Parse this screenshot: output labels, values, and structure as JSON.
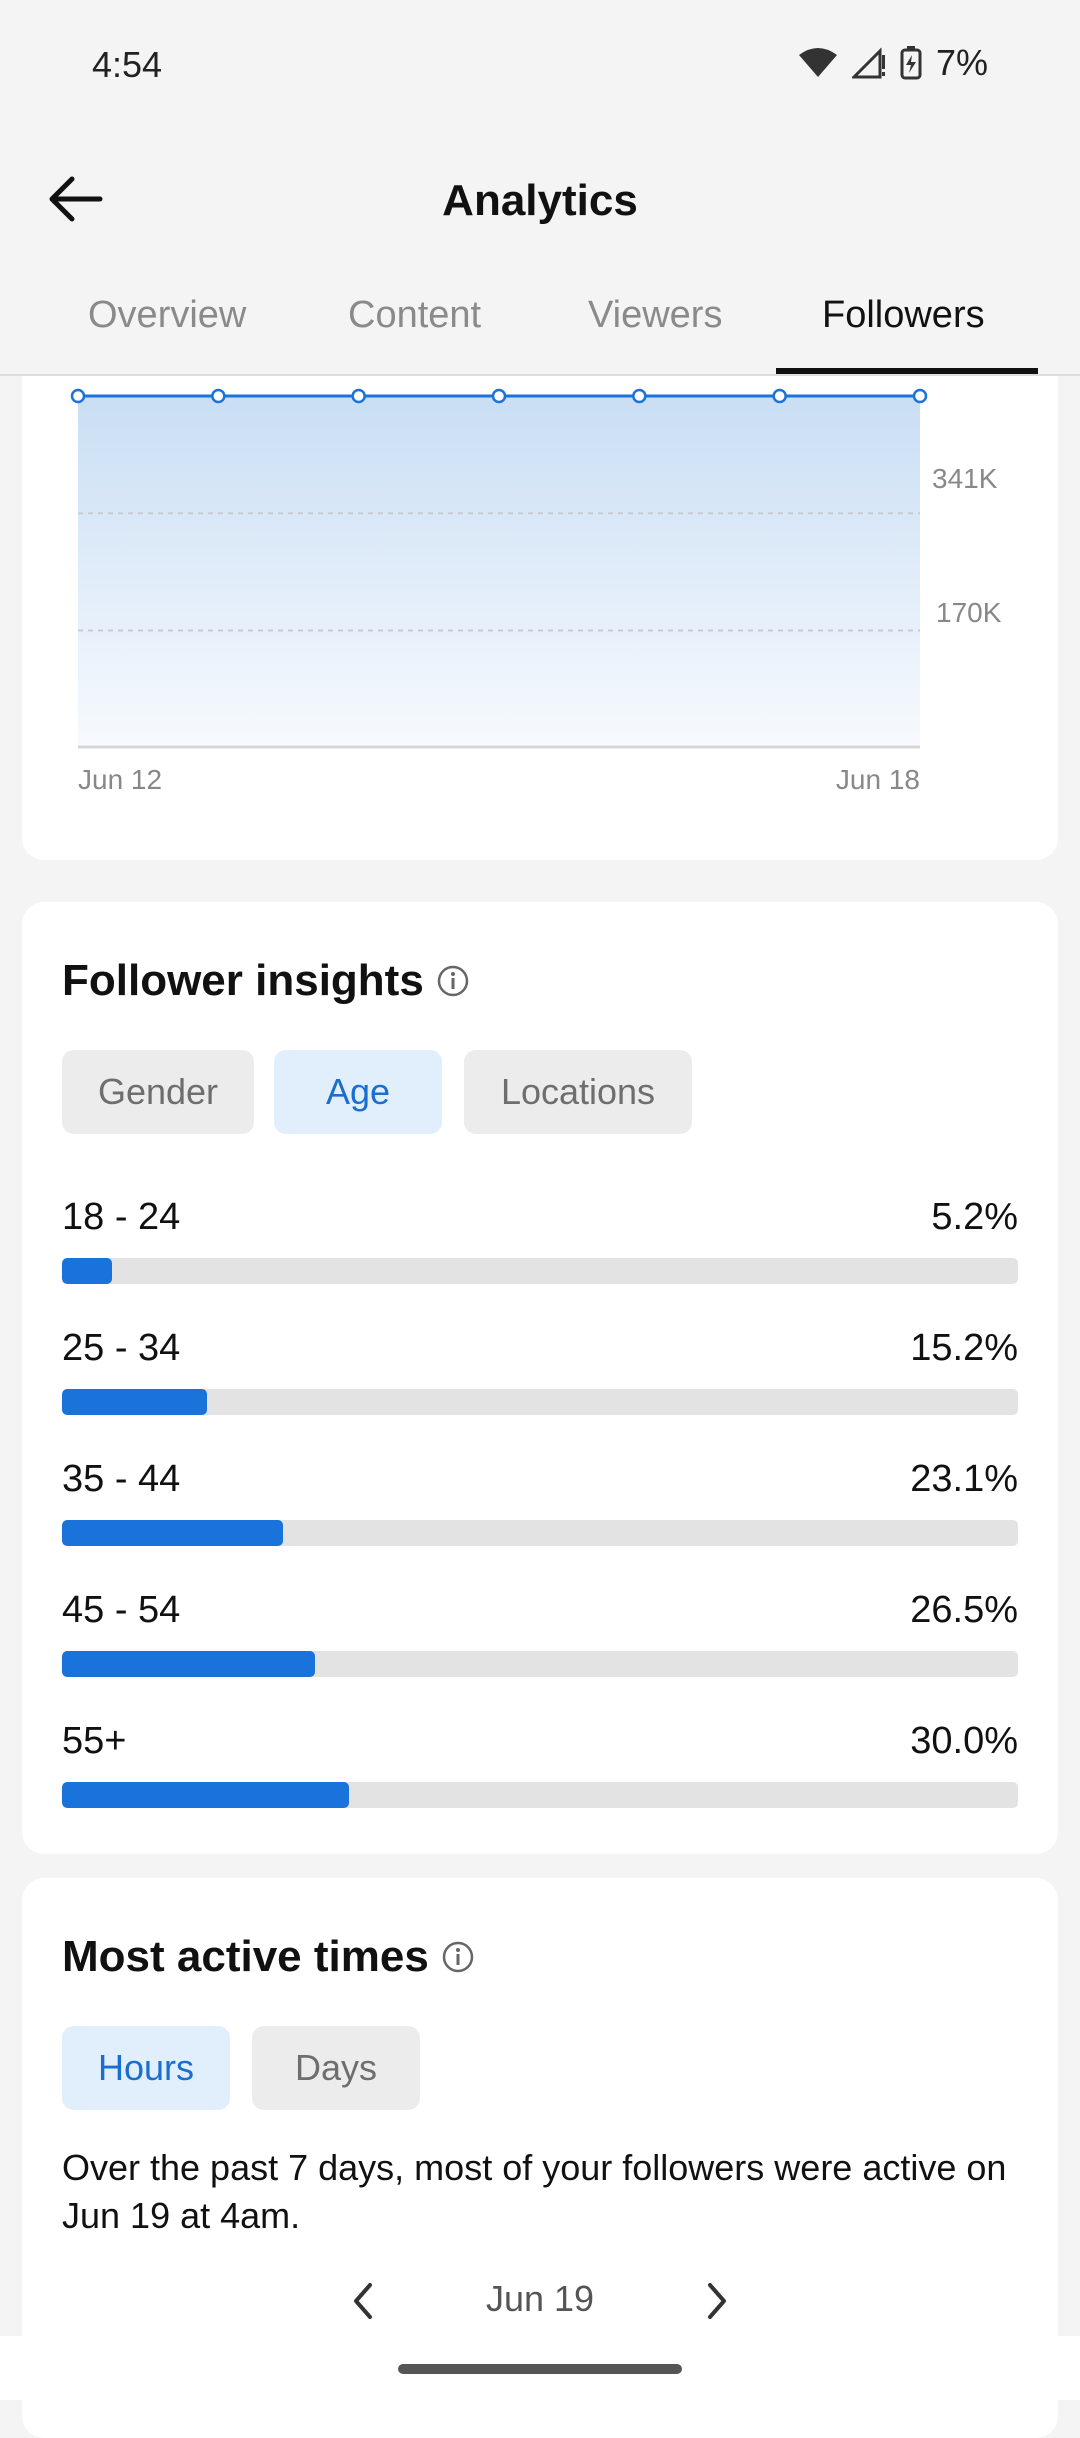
{
  "status_bar": {
    "time": "4:54",
    "battery": "7%"
  },
  "header": {
    "title": "Analytics"
  },
  "tabs": [
    {
      "label": "Overview"
    },
    {
      "label": "Content"
    },
    {
      "label": "Viewers"
    },
    {
      "label": "Followers"
    }
  ],
  "active_tab": "Followers",
  "follower_chart": {
    "y_tick_labels": [
      "341K",
      "170K"
    ],
    "x_tick_labels": [
      "Jun 12",
      "Jun 18"
    ]
  },
  "chart_data": {
    "type": "area",
    "x": [
      "Jun 12",
      "Jun 13",
      "Jun 14",
      "Jun 15",
      "Jun 16",
      "Jun 17",
      "Jun 18"
    ],
    "series": [
      {
        "values": [
          512000,
          512000,
          512000,
          512000,
          512000,
          512000,
          512000
        ]
      }
    ],
    "yticks": [
      170000,
      341000
    ],
    "ylim": [
      0,
      512000
    ],
    "grid": true,
    "color": "#1a73da"
  },
  "insights": {
    "title": "Follower insights",
    "chips": [
      {
        "label": "Gender",
        "selected": false
      },
      {
        "label": "Age",
        "selected": true
      },
      {
        "label": "Locations",
        "selected": false
      }
    ],
    "age_groups": [
      {
        "label": "18 - 24",
        "pct_text": "5.2%",
        "value": 5.2
      },
      {
        "label": "25 - 34",
        "pct_text": "15.2%",
        "value": 15.2
      },
      {
        "label": "35 - 44",
        "pct_text": "23.1%",
        "value": 23.1
      },
      {
        "label": "45 - 54",
        "pct_text": "26.5%",
        "value": 26.5
      },
      {
        "label": "55+",
        "pct_text": "30.0%",
        "value": 30.0
      }
    ]
  },
  "most_active": {
    "title": "Most active times",
    "chips": [
      {
        "label": "Hours",
        "selected": true
      },
      {
        "label": "Days",
        "selected": false
      }
    ],
    "description": "Over the past 7 days, most of your followers were active on Jun 19 at 4am.",
    "current_date": "Jun 19"
  },
  "colors": {
    "accent": "#1a73da",
    "chip_selected_bg": "#e1eefb",
    "chip_bg": "#ececec"
  },
  "icons": [
    "back-arrow-icon",
    "info-icon",
    "chevron-left-icon",
    "chevron-right-icon",
    "wifi-icon",
    "signal-icon",
    "battery-icon"
  ]
}
